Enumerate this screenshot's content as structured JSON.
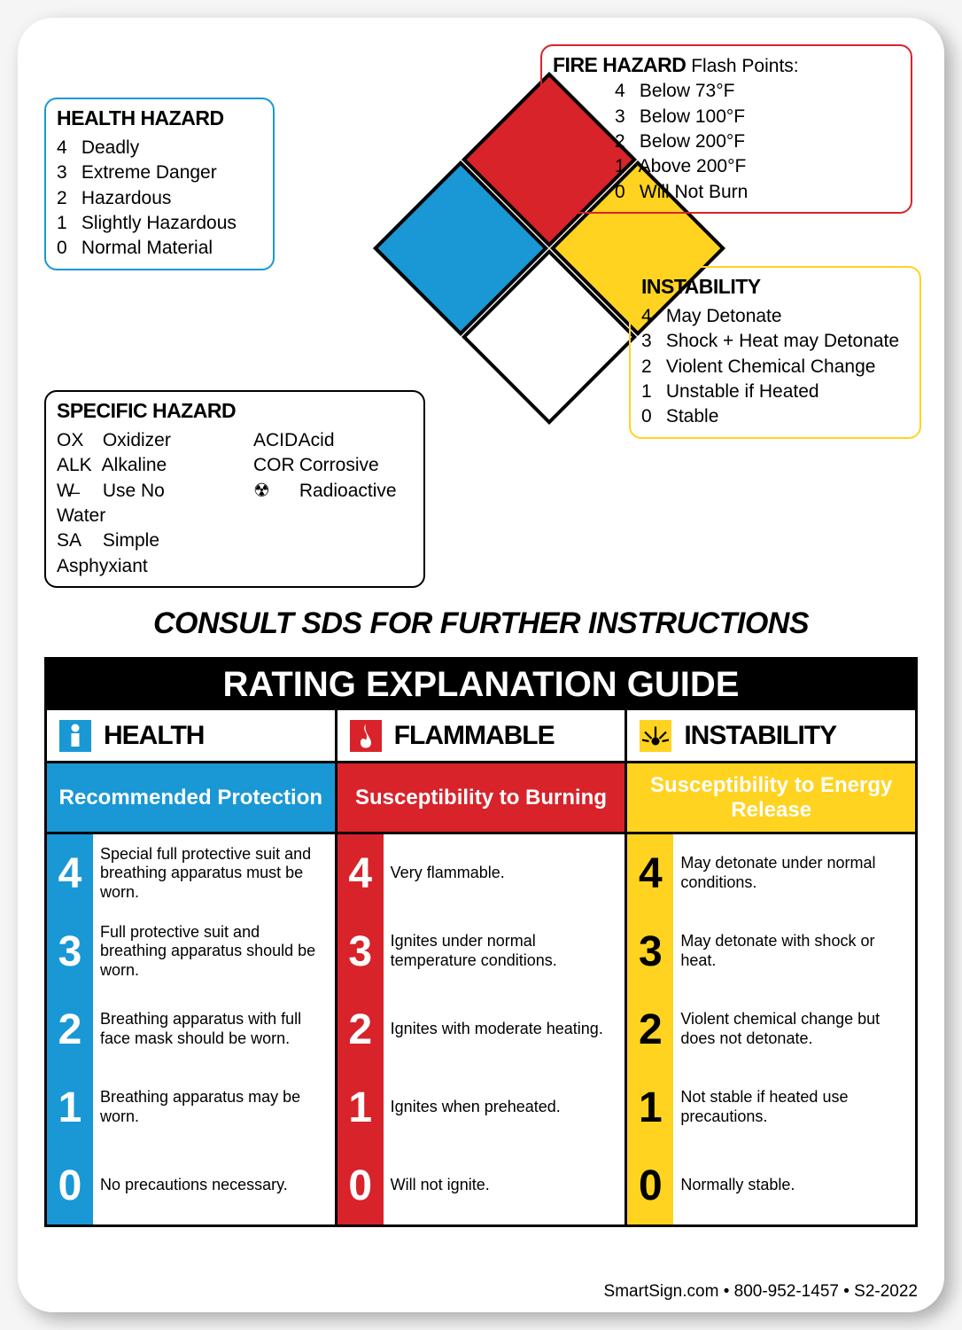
{
  "colors": {
    "red": "#d8232a",
    "blue": "#1998d5",
    "yellow": "#ffd320",
    "white": "#ffffff",
    "black": "#000000",
    "health_border": "#1998d5",
    "fire_border": "#d8232a",
    "instability_border": "#ffd320",
    "specific_border": "#000000"
  },
  "diamond": {
    "top_color": "#d8232a",
    "left_color": "#1998d5",
    "right_color": "#ffd320",
    "bottom_color": "#ffffff"
  },
  "health_hazard": {
    "title": "HEALTH HAZARD",
    "items": [
      {
        "n": "4",
        "t": "Deadly"
      },
      {
        "n": "3",
        "t": "Extreme Danger"
      },
      {
        "n": "2",
        "t": "Hazardous"
      },
      {
        "n": "1",
        "t": "Slightly Hazardous"
      },
      {
        "n": "0",
        "t": "Normal Material"
      }
    ]
  },
  "fire_hazard": {
    "title": "FIRE HAZARD",
    "subtitle": "Flash Points:",
    "items": [
      {
        "n": "4",
        "t": "Below 73°F"
      },
      {
        "n": "3",
        "t": "Below 100°F"
      },
      {
        "n": "2",
        "t": "Below 200°F"
      },
      {
        "n": "1",
        "t": "Above 200°F"
      },
      {
        "n": "0",
        "t": "Will Not Burn"
      }
    ]
  },
  "instability": {
    "title": "INSTABILITY",
    "items": [
      {
        "n": "4",
        "t": "May Detonate"
      },
      {
        "n": "3",
        "t": "Shock + Heat may Detonate"
      },
      {
        "n": "2",
        "t": "Violent Chemical Change"
      },
      {
        "n": "1",
        "t": "Unstable if Heated"
      },
      {
        "n": "0",
        "t": "Stable"
      }
    ]
  },
  "specific_hazard": {
    "title": "SPECIFIC HAZARD",
    "col1": [
      {
        "c": "OX",
        "t": "Oxidizer"
      },
      {
        "c": "ALK",
        "t": "Alkaline"
      },
      {
        "c": "W̶",
        "t": "Use No Water"
      },
      {
        "c": "SA",
        "t": "Simple Asphyxiant"
      }
    ],
    "col2": [
      {
        "c": "ACID",
        "t": "Acid"
      },
      {
        "c": "COR",
        "t": "Corrosive"
      },
      {
        "c": "☢",
        "t": "Radioactive"
      }
    ]
  },
  "consult": "CONSULT SDS FOR FURTHER INSTRUCTIONS",
  "guide": {
    "title": "RATING EXPLANATION GUIDE",
    "columns": [
      {
        "name": "HEALTH",
        "sub": "Recommended Protection",
        "bg": "#1998d5",
        "num_color": "#ffffff",
        "rows": [
          {
            "n": "4",
            "t": "Special full protective suit and breathing apparatus must be worn."
          },
          {
            "n": "3",
            "t": "Full protective suit and breathing apparatus should be worn."
          },
          {
            "n": "2",
            "t": "Breathing apparatus with full face mask should be worn."
          },
          {
            "n": "1",
            "t": "Breathing apparatus may be worn."
          },
          {
            "n": "0",
            "t": "No precautions necessary."
          }
        ]
      },
      {
        "name": "FLAMMABLE",
        "sub": "Susceptibility to Burning",
        "bg": "#d8232a",
        "num_color": "#ffffff",
        "rows": [
          {
            "n": "4",
            "t": "Very flammable."
          },
          {
            "n": "3",
            "t": "Ignites under normal temperature conditions."
          },
          {
            "n": "2",
            "t": "Ignites with moderate heating."
          },
          {
            "n": "1",
            "t": "Ignites when preheated."
          },
          {
            "n": "0",
            "t": "Will not ignite."
          }
        ]
      },
      {
        "name": "INSTABILITY",
        "sub": "Susceptibility to Energy Release",
        "bg": "#ffd320",
        "num_color": "#000000",
        "rows": [
          {
            "n": "4",
            "t": "May detonate under normal conditions."
          },
          {
            "n": "3",
            "t": "May detonate with shock or heat."
          },
          {
            "n": "2",
            "t": "Violent chemical change but does not detonate."
          },
          {
            "n": "1",
            "t": "Not stable if heated use precautions."
          },
          {
            "n": "0",
            "t": "Normally stable."
          }
        ]
      }
    ]
  },
  "footer": "SmartSign.com • 800-952-1457 • S2-2022"
}
